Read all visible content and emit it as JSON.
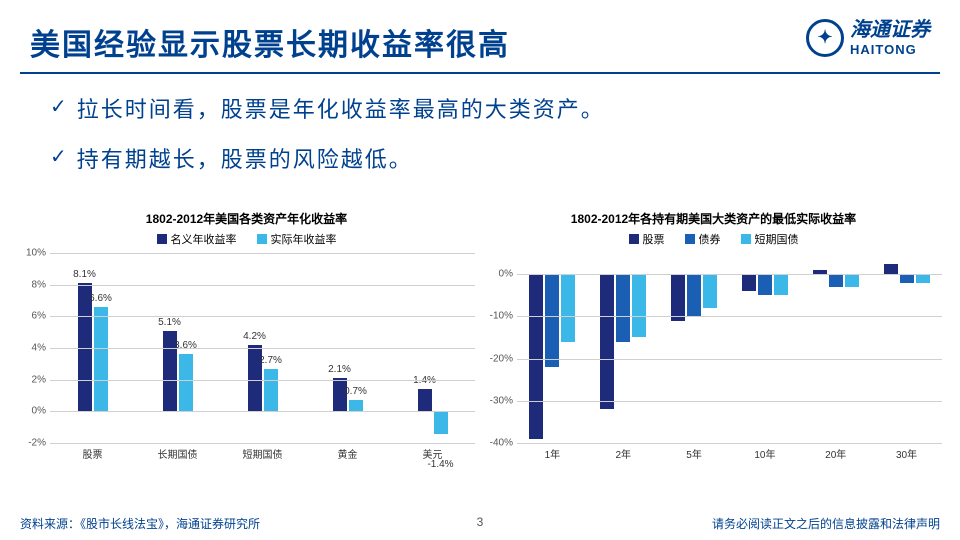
{
  "title": "美国经验显示股票长期收益率很高",
  "logo": {
    "cn": "海通证券",
    "en": "HAITONG"
  },
  "bullets": [
    "拉长时间看，股票是年化收益率最高的大类资产。",
    "持有期越长，股票的风险越低。"
  ],
  "chart1": {
    "title": "1802-2012年美国各类资产年化收益率",
    "type": "bar",
    "legend": [
      {
        "label": "名义年收益率",
        "color": "#1e2b7a"
      },
      {
        "label": "实际年收益率",
        "color": "#3bb8e8"
      }
    ],
    "categories": [
      "股票",
      "长期国债",
      "短期国债",
      "黄金",
      "美元"
    ],
    "series": [
      {
        "label": "8.1%",
        "v": 8.1,
        "color": "#1e2b7a"
      },
      {
        "label": "6.6%",
        "v": 6.6,
        "color": "#3bb8e8"
      },
      {
        "label": "5.1%",
        "v": 5.1,
        "color": "#1e2b7a"
      },
      {
        "label": "3.6%",
        "v": 3.6,
        "color": "#3bb8e8"
      },
      {
        "label": "4.2%",
        "v": 4.2,
        "color": "#1e2b7a"
      },
      {
        "label": "2.7%",
        "v": 2.7,
        "color": "#3bb8e8"
      },
      {
        "label": "2.1%",
        "v": 2.1,
        "color": "#1e2b7a"
      },
      {
        "label": "0.7%",
        "v": 0.7,
        "color": "#3bb8e8"
      },
      {
        "label": "1.4%",
        "v": 1.4,
        "color": "#1e2b7a"
      },
      {
        "label": "-1.4%",
        "v": -1.4,
        "color": "#3bb8e8"
      }
    ],
    "ymin": -2,
    "ymax": 10,
    "ystep": 2,
    "yticks": [
      "-2%",
      "0%",
      "2%",
      "4%",
      "6%",
      "8%",
      "10%"
    ]
  },
  "chart2": {
    "title": "1802-2012年各持有期美国大类资产的最低实际收益率",
    "type": "bar",
    "legend": [
      {
        "label": "股票",
        "color": "#1e2b7a"
      },
      {
        "label": "债券",
        "color": "#1a5fb4"
      },
      {
        "label": "短期国债",
        "color": "#3bb8e8"
      }
    ],
    "categories": [
      "1年",
      "2年",
      "5年",
      "10年",
      "20年",
      "30年"
    ],
    "series": [
      {
        "v": -39,
        "color": "#1e2b7a"
      },
      {
        "v": -22,
        "color": "#1a5fb4"
      },
      {
        "v": -16,
        "color": "#3bb8e8"
      },
      {
        "v": -32,
        "color": "#1e2b7a"
      },
      {
        "v": -16,
        "color": "#1a5fb4"
      },
      {
        "v": -15,
        "color": "#3bb8e8"
      },
      {
        "v": -11,
        "color": "#1e2b7a"
      },
      {
        "v": -10,
        "color": "#1a5fb4"
      },
      {
        "v": -8,
        "color": "#3bb8e8"
      },
      {
        "v": -4,
        "color": "#1e2b7a"
      },
      {
        "v": -5,
        "color": "#1a5fb4"
      },
      {
        "v": -5,
        "color": "#3bb8e8"
      },
      {
        "v": 1,
        "color": "#1e2b7a"
      },
      {
        "v": -3,
        "color": "#1a5fb4"
      },
      {
        "v": -3,
        "color": "#3bb8e8"
      },
      {
        "v": 2.5,
        "color": "#1e2b7a"
      },
      {
        "v": -2,
        "color": "#1a5fb4"
      },
      {
        "v": -2,
        "color": "#3bb8e8"
      }
    ],
    "ymin": -40,
    "ymax": 5,
    "ystep": 10,
    "yticks": [
      "-40%",
      "-30%",
      "-20%",
      "-10%",
      "0%"
    ]
  },
  "footer": {
    "left": "资料来源：《股市长线法宝》，海通证券研究所",
    "page": "3",
    "right": "请务必阅读正文之后的信息披露和法律声明"
  }
}
